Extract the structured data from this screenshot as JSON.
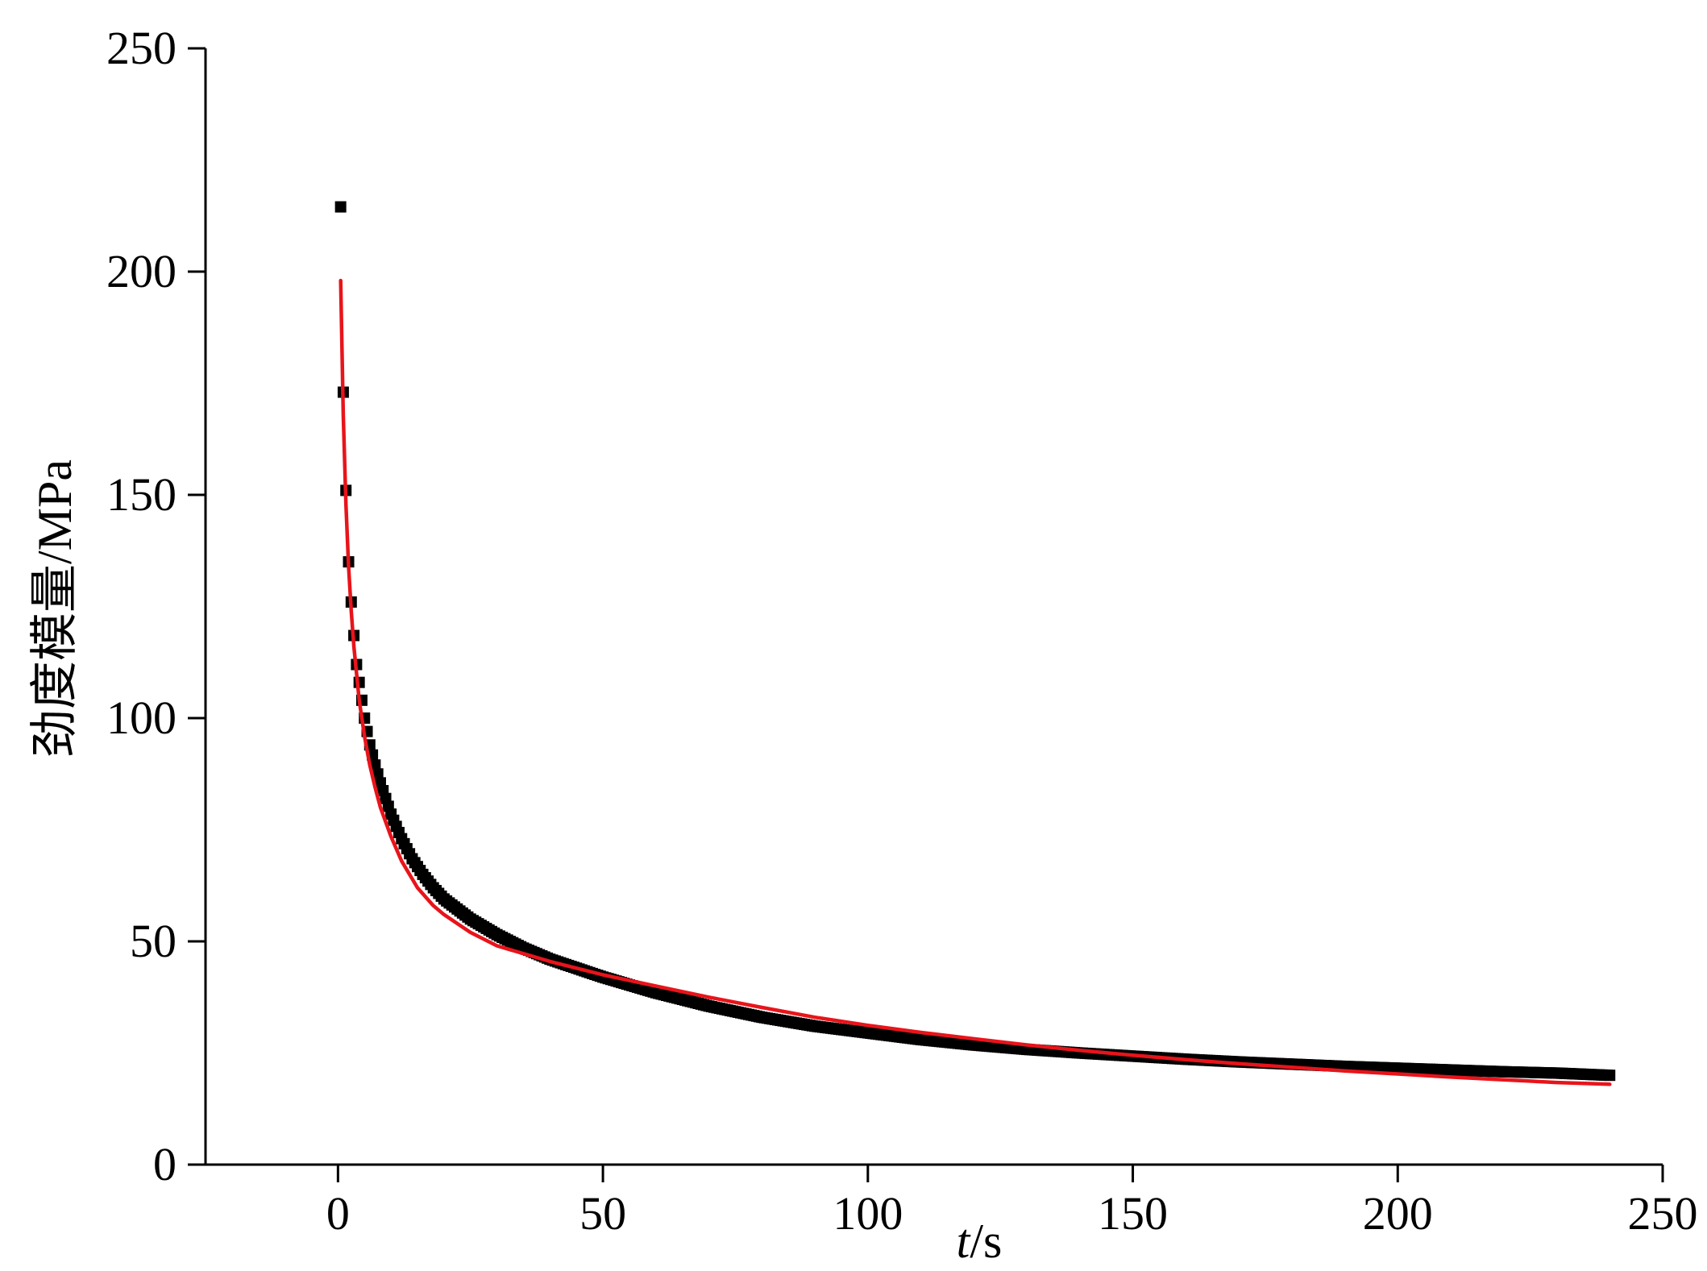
{
  "chart_data": {
    "type": "scatter",
    "xlabel_var": "t",
    "xlabel_unit": "/s",
    "ylabel": "劲度模量/MPa",
    "xlim": [
      -25,
      250
    ],
    "ylim": [
      0,
      250
    ],
    "xticks": [
      0,
      50,
      100,
      150,
      200,
      250
    ],
    "yticks": [
      0,
      50,
      100,
      150,
      200,
      250
    ],
    "grid": false,
    "series": [
      {
        "kind": "scatter",
        "color": "#000000",
        "x": [
          0.5,
          1,
          1.5,
          2,
          2.5,
          3,
          3.5,
          4,
          4.5,
          5,
          5.5,
          6,
          7,
          8,
          9,
          10,
          12,
          14,
          16,
          18,
          20,
          25,
          30,
          35,
          40,
          50,
          60,
          70,
          80,
          90,
          100,
          110,
          120,
          130,
          140,
          150,
          160,
          170,
          180,
          190,
          200,
          210,
          220,
          230,
          240
        ],
        "y": [
          214.5,
          173,
          151,
          135,
          126,
          118.5,
          112,
          108,
          104,
          100,
          97,
          94,
          89.5,
          85.5,
          82,
          78.5,
          73,
          68.5,
          65,
          62,
          59.5,
          55,
          51.5,
          48.5,
          46,
          42,
          38.5,
          35.5,
          33,
          31,
          29.5,
          28,
          26.8,
          25.8,
          25,
          24.3,
          23.6,
          23,
          22.5,
          22,
          21.6,
          21.2,
          20.8,
          20.5,
          20
        ]
      },
      {
        "kind": "line",
        "color": "#e8141b",
        "x": [
          0.5,
          1,
          1.5,
          2,
          2.5,
          3,
          4,
          5,
          6,
          7,
          8,
          10,
          12,
          15,
          18,
          20,
          25,
          30,
          40,
          50,
          60,
          70,
          80,
          90,
          100,
          110,
          120,
          130,
          140,
          150,
          160,
          170,
          180,
          190,
          200,
          210,
          220,
          230,
          240
        ],
        "y": [
          198,
          168,
          148,
          134,
          124,
          116,
          104,
          96,
          89.5,
          84.5,
          80,
          73.5,
          68,
          62,
          58,
          56,
          52,
          49,
          45.5,
          42.5,
          40,
          37.5,
          35.2,
          33,
          31.2,
          29.6,
          28.2,
          26.8,
          25.6,
          24.5,
          23.5,
          22.6,
          21.8,
          21,
          20.3,
          19.6,
          19,
          18.4,
          18
        ]
      }
    ]
  }
}
